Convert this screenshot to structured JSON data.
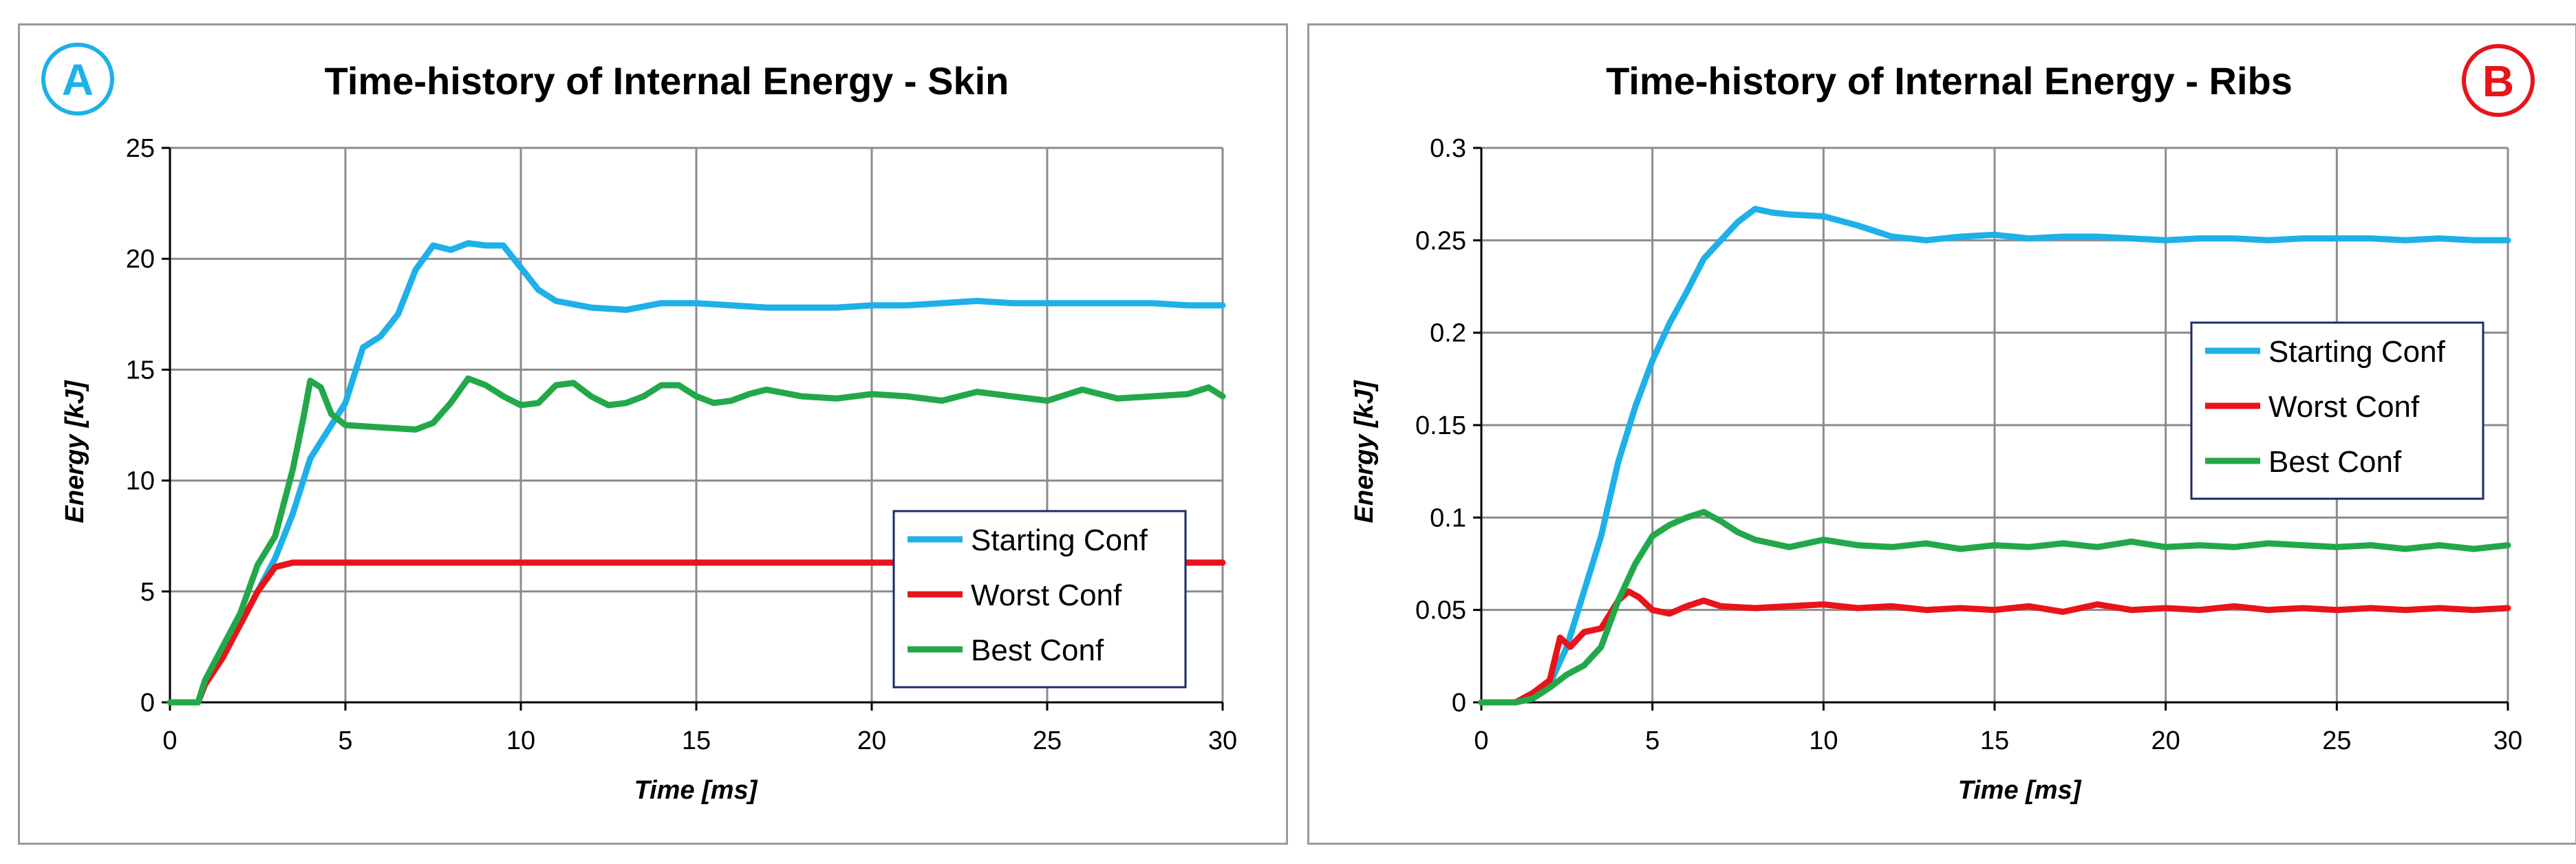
{
  "colors": {
    "starting": "#1EB0E8",
    "worst": "#E8141A",
    "best": "#22A84A",
    "grid": "#8c8c8c",
    "badge_a": "#1EB0E8",
    "badge_b": "#E8141A",
    "legend_border": "#1F2A6B"
  },
  "chart_data": [
    {
      "type": "line",
      "badge": "A",
      "title": "Time-history of Internal Energy - Skin",
      "xlabel": "Time [ms]",
      "ylabel": "Energy [kJ]",
      "xlim": [
        0,
        30
      ],
      "ylim": [
        0,
        25
      ],
      "xticks": [
        0,
        5,
        10,
        15,
        20,
        25,
        30
      ],
      "yticks": [
        0,
        5,
        10,
        15,
        20,
        25
      ],
      "ytick_labels": [
        "0",
        "5",
        "10",
        "15",
        "20",
        "25"
      ],
      "grid": true,
      "legend_position": "bottom-right",
      "series": [
        {
          "name": "Starting Conf",
          "color_key": "starting",
          "x": [
            0,
            0.8,
            1,
            2,
            3,
            3.5,
            4,
            5,
            5.5,
            6,
            6.5,
            7,
            7.5,
            8,
            8.5,
            9,
            9.5,
            10,
            10.5,
            11,
            12,
            13,
            14,
            15,
            16,
            17,
            18,
            19,
            20,
            21,
            22,
            23,
            24,
            25,
            26,
            27,
            28,
            29,
            30
          ],
          "y": [
            0,
            0,
            0.8,
            3.5,
            6.5,
            8.5,
            11.0,
            13.5,
            16.0,
            16.5,
            17.5,
            19.5,
            20.6,
            20.4,
            20.7,
            20.6,
            20.6,
            19.6,
            18.6,
            18.1,
            17.8,
            17.7,
            18.0,
            18.0,
            17.9,
            17.8,
            17.8,
            17.8,
            17.9,
            17.9,
            18.0,
            18.1,
            18.0,
            18.0,
            18.0,
            18.0,
            18.0,
            17.9,
            17.9
          ]
        },
        {
          "name": "Worst Conf",
          "color_key": "worst",
          "x": [
            0,
            0.8,
            1,
            1.5,
            2,
            2.5,
            3,
            3.5,
            4,
            5,
            10,
            15,
            20,
            25,
            30
          ],
          "y": [
            0,
            0,
            0.8,
            2.0,
            3.5,
            5.0,
            6.1,
            6.3,
            6.3,
            6.3,
            6.3,
            6.3,
            6.3,
            6.3,
            6.3
          ]
        },
        {
          "name": "Best Conf",
          "color_key": "best",
          "x": [
            0,
            0.8,
            1,
            1.5,
            2,
            2.5,
            3,
            3.5,
            3.8,
            4,
            4.3,
            4.6,
            5,
            6,
            7,
            7.5,
            8,
            8.5,
            9,
            9.5,
            10,
            10.5,
            11,
            11.5,
            12,
            12.5,
            13,
            13.5,
            14,
            14.5,
            15,
            15.5,
            16,
            16.5,
            17,
            18,
            19,
            20,
            21,
            22,
            23,
            24,
            25,
            26,
            27,
            28,
            29,
            29.6,
            30
          ],
          "y": [
            0,
            0,
            1.0,
            2.5,
            4.0,
            6.2,
            7.5,
            10.5,
            12.8,
            14.5,
            14.2,
            13.0,
            12.5,
            12.4,
            12.3,
            12.6,
            13.5,
            14.6,
            14.3,
            13.8,
            13.4,
            13.5,
            14.3,
            14.4,
            13.8,
            13.4,
            13.5,
            13.8,
            14.3,
            14.3,
            13.8,
            13.5,
            13.6,
            13.9,
            14.1,
            13.8,
            13.7,
            13.9,
            13.8,
            13.6,
            14.0,
            13.8,
            13.6,
            14.1,
            13.7,
            13.8,
            13.9,
            14.2,
            13.8
          ]
        }
      ]
    },
    {
      "type": "line",
      "badge": "B",
      "title": "Time-history of Internal Energy - Ribs",
      "xlabel": "Time [ms]",
      "ylabel": "Energy [kJ]",
      "xlim": [
        0,
        30
      ],
      "ylim": [
        0,
        0.3
      ],
      "xticks": [
        0,
        5,
        10,
        15,
        20,
        25,
        30
      ],
      "yticks": [
        0,
        0.05,
        0.1,
        0.15,
        0.2,
        0.25,
        0.3
      ],
      "ytick_labels": [
        "0",
        "0.05",
        "0.1",
        "0.15",
        "0.2",
        "0.25",
        "0.3"
      ],
      "grid": true,
      "legend_position": "center-right",
      "series": [
        {
          "name": "Starting Conf",
          "color_key": "starting",
          "x": [
            0,
            1,
            1.5,
            2,
            2.5,
            3,
            3.5,
            4,
            4.5,
            5,
            5.5,
            6,
            6.5,
            7,
            7.5,
            8,
            8.5,
            9,
            10,
            11,
            12,
            13,
            14,
            15,
            16,
            17,
            18,
            19,
            20,
            21,
            22,
            23,
            24,
            25,
            26,
            27,
            28,
            29,
            30
          ],
          "y": [
            0,
            0,
            0.002,
            0.01,
            0.03,
            0.06,
            0.09,
            0.13,
            0.16,
            0.185,
            0.205,
            0.222,
            0.24,
            0.25,
            0.26,
            0.267,
            0.265,
            0.264,
            0.263,
            0.258,
            0.252,
            0.25,
            0.252,
            0.253,
            0.251,
            0.252,
            0.252,
            0.251,
            0.25,
            0.251,
            0.251,
            0.25,
            0.251,
            0.251,
            0.251,
            0.25,
            0.251,
            0.25,
            0.25
          ]
        },
        {
          "name": "Worst Conf",
          "color_key": "worst",
          "x": [
            0,
            1,
            1.5,
            2,
            2.3,
            2.6,
            3,
            3.5,
            4,
            4.3,
            4.6,
            5,
            5.5,
            6,
            6.5,
            7,
            8,
            9,
            10,
            11,
            12,
            13,
            14,
            15,
            16,
            17,
            18,
            19,
            20,
            21,
            22,
            23,
            24,
            25,
            26,
            27,
            28,
            29,
            30
          ],
          "y": [
            0,
            0,
            0.005,
            0.012,
            0.035,
            0.03,
            0.038,
            0.04,
            0.055,
            0.06,
            0.057,
            0.05,
            0.048,
            0.052,
            0.055,
            0.052,
            0.051,
            0.052,
            0.053,
            0.051,
            0.052,
            0.05,
            0.051,
            0.05,
            0.052,
            0.049,
            0.053,
            0.05,
            0.051,
            0.05,
            0.052,
            0.05,
            0.051,
            0.05,
            0.051,
            0.05,
            0.051,
            0.05,
            0.051
          ]
        },
        {
          "name": "Best Conf",
          "color_key": "best",
          "x": [
            0,
            1,
            1.5,
            2,
            2.5,
            3,
            3.5,
            4,
            4.5,
            5,
            5.5,
            6,
            6.5,
            7,
            7.5,
            8,
            9,
            10,
            11,
            12,
            13,
            14,
            15,
            16,
            17,
            18,
            19,
            20,
            21,
            22,
            23,
            24,
            25,
            26,
            27,
            28,
            29,
            30
          ],
          "y": [
            0,
            0,
            0.002,
            0.008,
            0.015,
            0.02,
            0.03,
            0.055,
            0.075,
            0.09,
            0.096,
            0.1,
            0.103,
            0.098,
            0.092,
            0.088,
            0.084,
            0.088,
            0.085,
            0.084,
            0.086,
            0.083,
            0.085,
            0.084,
            0.086,
            0.084,
            0.087,
            0.084,
            0.085,
            0.084,
            0.086,
            0.085,
            0.084,
            0.085,
            0.083,
            0.085,
            0.083,
            0.085
          ]
        }
      ]
    }
  ]
}
